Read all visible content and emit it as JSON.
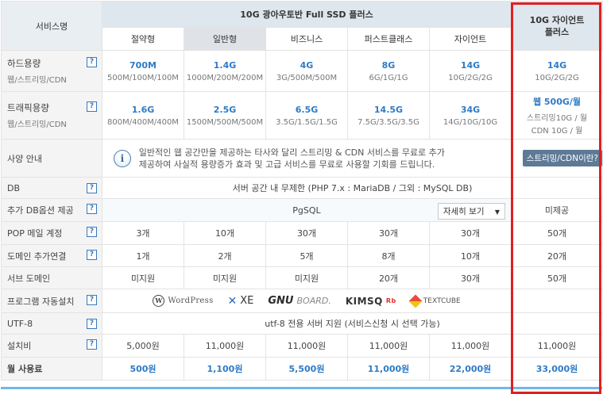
{
  "header": {
    "service_label": "서비스명",
    "group_title": "10G 광아우토반 Full SSD 플러스",
    "plans": [
      "절약형",
      "일반형",
      "비즈니스",
      "퍼스트클래스",
      "자이언트"
    ],
    "client_title_line1": "10G 자이언트",
    "client_title_line2": "플러스"
  },
  "rows": {
    "disk": {
      "label": "하드용량",
      "sub": "웹/스트리밍/CDN",
      "values": [
        {
          "main": "700M",
          "sub": "500M/100M/100M"
        },
        {
          "main": "1.4G",
          "sub": "1000M/200M/200M"
        },
        {
          "main": "4G",
          "sub": "3G/500M/500M"
        },
        {
          "main": "8G",
          "sub": "6G/1G/1G"
        },
        {
          "main": "14G",
          "sub": "10G/2G/2G"
        },
        {
          "main": "14G",
          "sub": "10G/2G/2G"
        }
      ]
    },
    "traffic": {
      "label": "트래픽용량",
      "sub": "웹/스트리밍/CDN",
      "values": [
        {
          "main": "1.6G",
          "sub": "800M/400M/400M"
        },
        {
          "main": "2.5G",
          "sub": "1500M/500M/500M"
        },
        {
          "main": "6.5G",
          "sub": "3.5G/1.5G/1.5G"
        },
        {
          "main": "14.5G",
          "sub": "7.5G/3.5G/3.5G"
        },
        {
          "main": "34G",
          "sub": "14G/10G/10G"
        }
      ],
      "client_main": "웹 500G/월",
      "client_sub1": "스트리밍10G / 월",
      "client_sub2": "CDN 10G / 월"
    },
    "spec": {
      "label": "사양 안내",
      "note_line1": "일반적인 웹 공간만을 제공하는 타사와 달리 스트리밍 & CDN 서비스를 무료로 추가",
      "note_line2": "제공하여 사실적 용량증가 효과 및 고급 서비스를 무료로 사용할 기회를 드립니다.",
      "cdn_button": "스트리밍/CDN이란?"
    },
    "db": {
      "label": "DB",
      "value": "서버 공간 내 무제한 (PHP 7.x : MariaDB / 그외 : MySQL DB)"
    },
    "db_option": {
      "label": "추가 DB옵션 제공",
      "value": "PgSQL",
      "detail_button": "자세히 보기",
      "client_value": "미제공"
    },
    "pop": {
      "label": "POP 메일 계정",
      "values": [
        "3개",
        "10개",
        "30개",
        "30개",
        "30개",
        "50개"
      ]
    },
    "domain": {
      "label": "도메인 추가연결",
      "values": [
        "1개",
        "2개",
        "5개",
        "8개",
        "10개",
        "20개"
      ]
    },
    "subdomain": {
      "label": "서브 도메인",
      "values": [
        "미지원",
        "미지원",
        "미지원",
        "20개",
        "30개",
        "50개"
      ]
    },
    "autoinstall": {
      "label": "프로그램 자동설치",
      "logos": {
        "wordpress": "WordPress",
        "xe": "XE",
        "gnuboard_a": "GNU",
        "gnuboard_b": "BOARD.",
        "kimsq": "KIMSQ",
        "kimsq_sup": "Rb",
        "textcube": "TEXTCUBE"
      }
    },
    "utf8": {
      "label": "UTF-8",
      "value": "utf-8 전용 서버 지원 (서비스신청 시 선택 가능)"
    },
    "setup": {
      "label": "설치비",
      "values": [
        "5,000원",
        "11,000원",
        "11,000원",
        "11,000원",
        "11,000원",
        "11,000원"
      ]
    },
    "monthly": {
      "label": "월 사용료",
      "values": [
        "500원",
        "1,100원",
        "5,500원",
        "11,000원",
        "22,000원",
        "33,000원"
      ]
    }
  },
  "help_icon_text": "?",
  "icons": {
    "help": "help-icon",
    "info": "info-icon",
    "dropdown": "chevron-down-icon"
  },
  "colors": {
    "accent_blue": "#2e7bc6",
    "highlight_red": "#e02020",
    "bottom_bar": "#6fb8e8"
  }
}
